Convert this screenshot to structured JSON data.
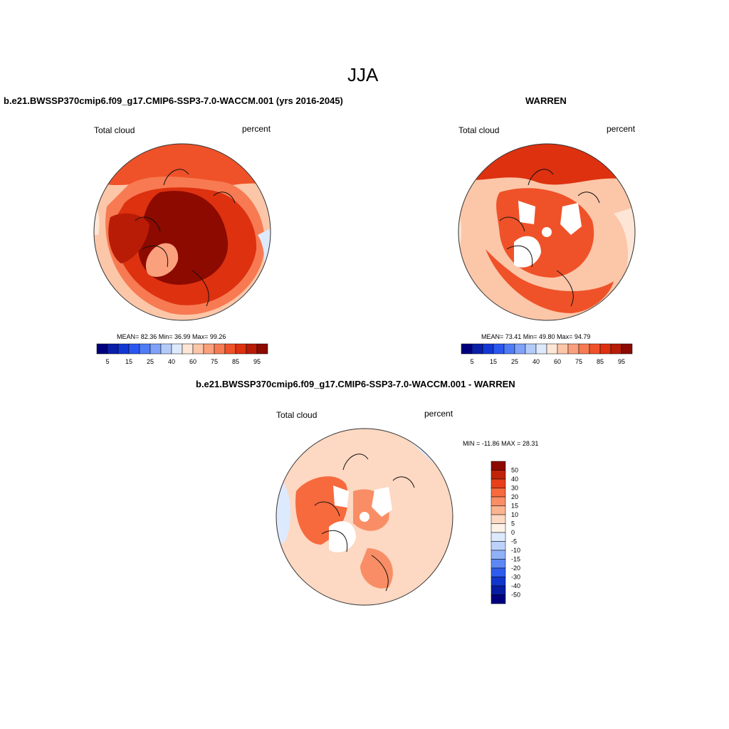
{
  "figure": {
    "title": "JJA",
    "variable_label": "Total cloud",
    "units_label": "percent"
  },
  "panels": [
    {
      "heading": "b.e21.BWSSP370cmip6.f09_g17.CMIP6-SSP3-7.0-WACCM.001 (yrs 2016-2045)",
      "variable_label": "Total cloud",
      "units_label": "percent",
      "stats": {
        "text": "MEAN=  82.36  Min=  36.99  Max=  99.26",
        "mean": 82.36,
        "min": 36.99,
        "max": 99.26
      },
      "colorbar": {
        "tick_labels": [
          "5",
          "15",
          "25",
          "40",
          "60",
          "75",
          "85",
          "95"
        ],
        "colors": [
          "#00007f",
          "#0a1fa8",
          "#1238d4",
          "#2a57f0",
          "#4f7cf6",
          "#7fa2f8",
          "#b4cbfa",
          "#ddeafd",
          "#fde6d6",
          "#fcc6a8",
          "#fba07c",
          "#f77a52",
          "#ef5229",
          "#dd3110",
          "#b81c06",
          "#8c0a00"
        ]
      }
    },
    {
      "heading": "WARREN",
      "variable_label": "Total cloud",
      "units_label": "percent",
      "stats": {
        "text": "MEAN=  73.41  Min=  49.80  Max=  94.79",
        "mean": 73.41,
        "min": 49.8,
        "max": 94.79
      },
      "colorbar": {
        "tick_labels": [
          "5",
          "15",
          "25",
          "40",
          "60",
          "75",
          "85",
          "95"
        ],
        "colors": [
          "#00007f",
          "#0a1fa8",
          "#1238d4",
          "#2a57f0",
          "#4f7cf6",
          "#7fa2f8",
          "#b4cbfa",
          "#ddeafd",
          "#fde6d6",
          "#fcc6a8",
          "#fba07c",
          "#f77a52",
          "#ef5229",
          "#dd3110",
          "#b81c06",
          "#8c0a00"
        ]
      }
    },
    {
      "heading": "b.e21.BWSSP370cmip6.f09_g17.CMIP6-SSP3-7.0-WACCM.001 - WARREN",
      "variable_label": "Total cloud",
      "units_label": "percent",
      "stats": {
        "text": "MIN = -11.86 MAX =  28.31",
        "min": -11.86,
        "max": 28.31
      },
      "colorbar": {
        "tick_labels": [
          "50",
          "40",
          "30",
          "20",
          "15",
          "10",
          "5",
          "0",
          "-5",
          "-10",
          "-15",
          "-20",
          "-30",
          "-40",
          "-50"
        ],
        "colors": [
          "#8c0a00",
          "#c0230a",
          "#e8401a",
          "#f66a3e",
          "#f98e66",
          "#fbb391",
          "#fdd8c2",
          "#fdf1e8",
          "#dde9fd",
          "#bcd2fb",
          "#8fb1f8",
          "#5d88f4",
          "#2e5cec",
          "#1236cc",
          "#081ca3",
          "#00007f"
        ]
      }
    }
  ],
  "chart_data": [
    {
      "type": "heatmap",
      "projection": "north polar stereographic",
      "title": "b.e21.BWSSP370cmip6.f09_g17.CMIP6-SSP3-7.0-WACCM.001 (yrs 2016-2045)",
      "variable": "Total cloud",
      "units": "percent",
      "mean": 82.36,
      "min": 36.99,
      "max": 99.26,
      "levels": [
        5,
        15,
        25,
        40,
        60,
        75,
        85,
        95
      ]
    },
    {
      "type": "heatmap",
      "projection": "north polar stereographic",
      "title": "WARREN",
      "variable": "Total cloud",
      "units": "percent",
      "mean": 73.41,
      "min": 49.8,
      "max": 94.79,
      "levels": [
        5,
        15,
        25,
        40,
        60,
        75,
        85,
        95
      ]
    },
    {
      "type": "heatmap",
      "projection": "north polar stereographic",
      "title": "b.e21.BWSSP370cmip6.f09_g17.CMIP6-SSP3-7.0-WACCM.001 - WARREN",
      "variable": "Total cloud",
      "units": "percent",
      "min": -11.86,
      "max": 28.31,
      "levels": [
        50,
        40,
        30,
        20,
        15,
        10,
        5,
        0,
        -5,
        -10,
        -15,
        -20,
        -30,
        -40,
        -50
      ]
    }
  ]
}
